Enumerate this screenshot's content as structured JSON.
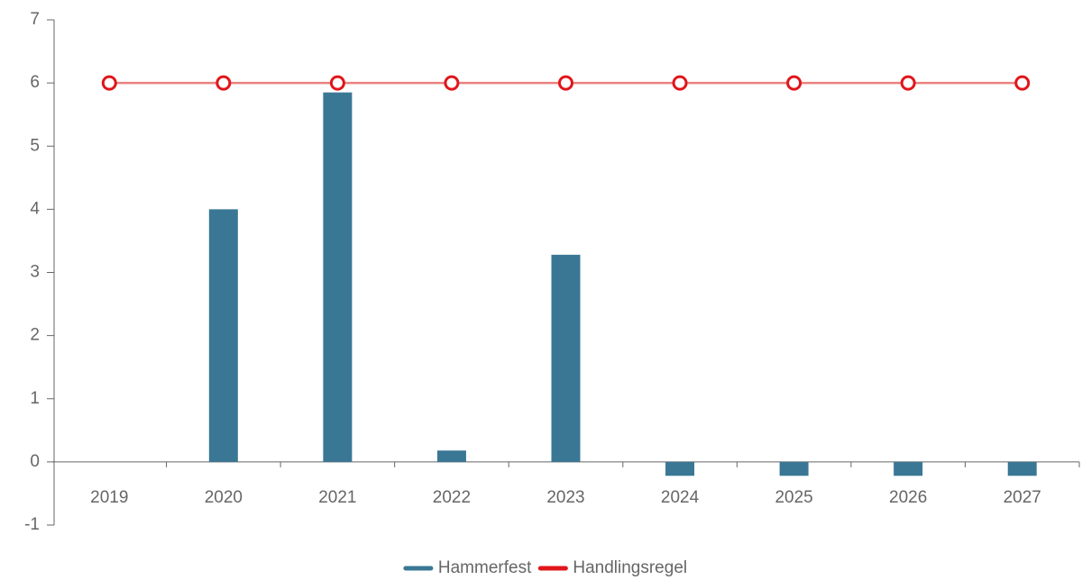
{
  "chart_data": {
    "type": "bar",
    "categories": [
      "2019",
      "2020",
      "2021",
      "2022",
      "2023",
      "2024",
      "2025",
      "2026",
      "2027"
    ],
    "series": [
      {
        "name": "Hammerfest",
        "type": "bar",
        "color": "#3a7795",
        "values": [
          null,
          4,
          5.85,
          0.18,
          3.28,
          -0.22,
          -0.22,
          -0.22,
          -0.22
        ]
      },
      {
        "name": "Handlingsregel",
        "type": "line",
        "color": "#e0161b",
        "line_color": "#e8817f",
        "values": [
          6,
          6,
          6,
          6,
          6,
          6,
          6,
          6,
          6
        ]
      }
    ],
    "ylim": [
      -1,
      7
    ],
    "yticks": [
      -1,
      0,
      1,
      2,
      3,
      4,
      5,
      6,
      7
    ],
    "legend": "bottom"
  }
}
